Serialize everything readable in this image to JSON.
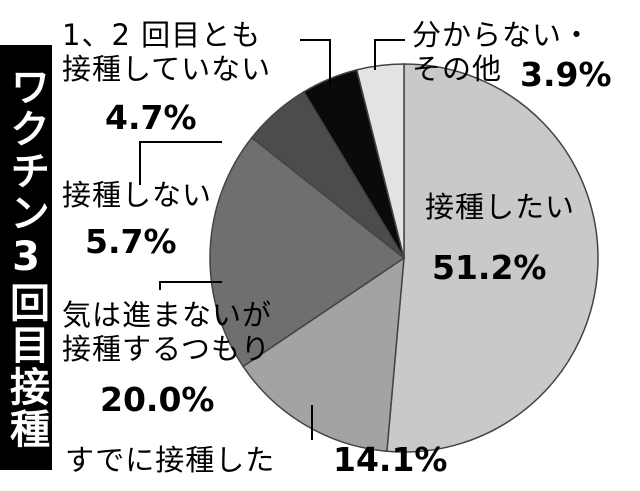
{
  "chart_data": {
    "type": "pie",
    "title": "ワクチン3回目接種",
    "categories": [
      "接種したい",
      "すでに接種した",
      "気は進まないが\n接種するつもり",
      "接種しない",
      "1、2 回目とも\n接種していない",
      "分からない・\nその他"
    ],
    "values": [
      51.2,
      14.1,
      20.0,
      5.7,
      4.7,
      3.9
    ],
    "value_labels": [
      "51.2%",
      "14.1%",
      "20.0%",
      "5.7%",
      "4.7%",
      "3.9%"
    ],
    "colors": [
      "#c9c9c9",
      "#a3a3a3",
      "#6f6f6f",
      "#4c4c4c",
      "#0a0a0a",
      "#e3e3e3"
    ]
  }
}
